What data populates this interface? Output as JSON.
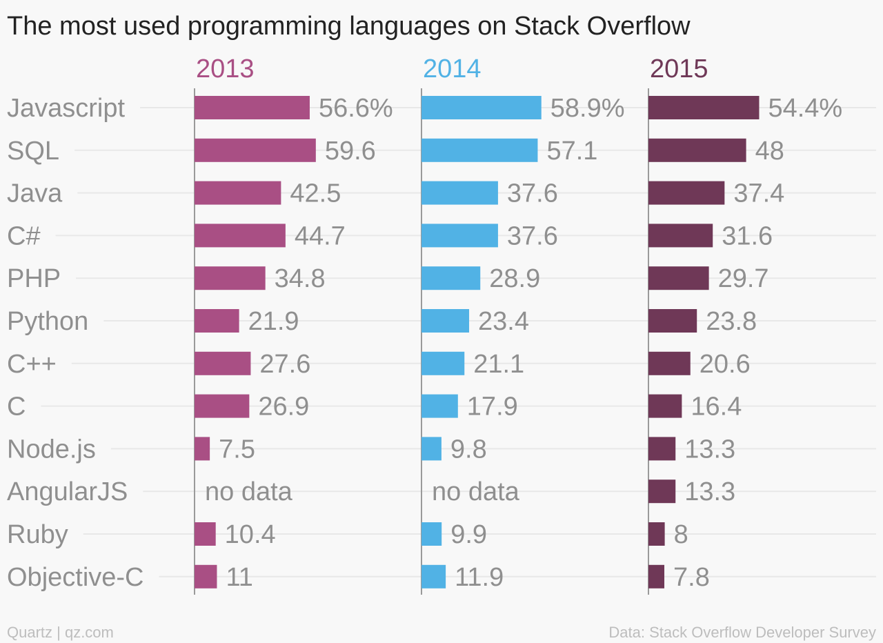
{
  "chart_data": {
    "type": "bar",
    "title": "The most used programming languages on Stack Overflow",
    "categories": [
      "Javascript",
      "SQL",
      "Java",
      "C#",
      "PHP",
      "Python",
      "C++",
      "C",
      "Node.js",
      "AngularJS",
      "Ruby",
      "Objective-C"
    ],
    "series": [
      {
        "name": "2013",
        "color": "#a94f84",
        "values": [
          56.6,
          59.6,
          42.5,
          44.7,
          34.8,
          21.9,
          27.6,
          26.9,
          7.5,
          null,
          10.4,
          11
        ],
        "labels": [
          "56.6%",
          "59.6",
          "42.5",
          "44.7",
          "34.8",
          "21.9",
          "27.6",
          "26.9",
          "7.5",
          "no data",
          "10.4",
          "11"
        ]
      },
      {
        "name": "2014",
        "color": "#51b2e5",
        "values": [
          58.9,
          57.1,
          37.6,
          37.6,
          28.9,
          23.4,
          21.1,
          17.9,
          9.8,
          null,
          9.9,
          11.9
        ],
        "labels": [
          "58.9%",
          "57.1",
          "37.6",
          "37.6",
          "28.9",
          "23.4",
          "21.1",
          "17.9",
          "9.8",
          "no data",
          "9.9",
          "11.9"
        ]
      },
      {
        "name": "2015",
        "color": "#6f3857",
        "values": [
          54.4,
          48,
          37.4,
          31.6,
          29.7,
          23.8,
          20.6,
          16.4,
          13.3,
          13.3,
          8,
          7.8
        ],
        "labels": [
          "54.4%",
          "48",
          "37.4",
          "31.6",
          "29.7",
          "23.8",
          "20.6",
          "16.4",
          "13.3",
          "13.3",
          "8",
          "7.8"
        ]
      }
    ],
    "unit": "%",
    "grid": true,
    "source_left": "Quartz | qz.com",
    "source_right": "Data: Stack Overflow Developer Survey"
  }
}
